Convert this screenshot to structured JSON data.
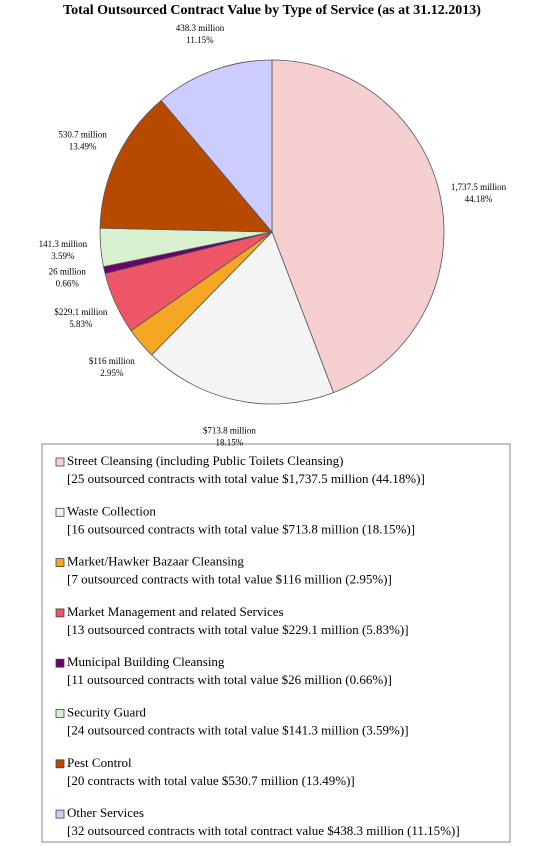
{
  "chart_data": {
    "type": "pie",
    "title": "Total Outsourced Contract Value by Type of Service (as at 31.12.2013)",
    "categories": [
      "Street Cleansing (including Public Toilets Cleansing)",
      "Waste Collection",
      "Market/Hawker Bazaar Cleansing",
      "Market Management and related Services",
      "Municipal Building Cleansing",
      "Security Guard",
      "Pest Control",
      "Other Services"
    ],
    "values": [
      1737.5,
      713.8,
      116,
      229.1,
      26,
      141.3,
      530.7,
      438.3
    ],
    "value_labels": [
      "1,737.5 million",
      "$713.8 million",
      "$116 million",
      "$229.1 million",
      "26 million",
      "141.3 million",
      "530.7 million",
      "438.3 million"
    ],
    "percent_labels": [
      "44.18%",
      "18.15%",
      "2.95%",
      "5.83%",
      "0.66%",
      "3.59%",
      "13.49%",
      "11.15%"
    ],
    "colors": [
      "#f6d0d0",
      "#f4f4f4",
      "#f5a623",
      "#ee5566",
      "#6a006a",
      "#d6f0d0",
      "#b84a00",
      "#ccccff"
    ],
    "legend_details": [
      "[25 outsourced contracts with total value $1,737.5 million (44.18%)]",
      "[16 outsourced contracts with total value $713.8 million (18.15%)]",
      "[7 outsourced contracts with total value $116 million (2.95%)]",
      "[13 outsourced contracts with total value $229.1 million (5.83%)]",
      "[11 outsourced contracts with total value $26 million (0.66%)]",
      "[24 outsourced contracts with total value $141.3 million (3.59%)]",
      "[20 contracts with total value $530.7 million (13.49%)]",
      "[32 outsourced contracts with total contract value $438.3 million (11.15%)]"
    ]
  }
}
